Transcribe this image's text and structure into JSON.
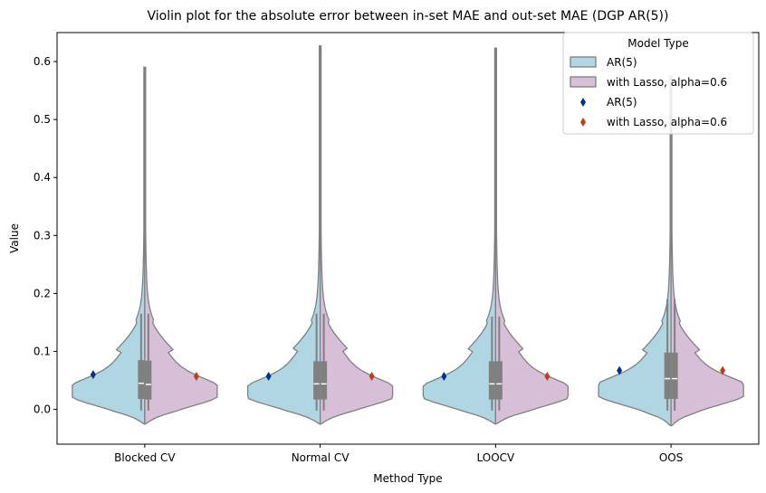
{
  "chart_data": {
    "type": "violin",
    "title": "Violin plot for the absolute error between in-set MAE and out-set MAE (DGP AR(5))",
    "xlabel": "Method Type",
    "ylabel": "Value",
    "ylim": [
      -0.06,
      0.65
    ],
    "yticks": [
      "0.0",
      "0.1",
      "0.2",
      "0.3",
      "0.4",
      "0.5",
      "0.6"
    ],
    "categories": [
      "Blocked CV",
      "Normal CV",
      "LOOCV",
      "OOS"
    ],
    "legend": {
      "title": "Model Type",
      "position": "top-right",
      "entries": [
        "AR(5)",
        "with Lasso, alpha=0.6",
        "AR(5)",
        "with Lasso, alpha=0.6"
      ]
    },
    "colors": {
      "ar5_fill": "#b0d6e3",
      "lasso_fill": "#d8bfd8",
      "violin_edge": "#808080",
      "ar5_marker": "#00308f",
      "lasso_marker": "#b5401b"
    },
    "series": [
      {
        "name": "AR(5)",
        "means": [
          0.06,
          0.057,
          0.057,
          0.067
        ],
        "medians": [
          0.045,
          0.044,
          0.044,
          0.053
        ],
        "q1": [
          0.018,
          0.017,
          0.017,
          0.018
        ],
        "q3": [
          0.085,
          0.083,
          0.083,
          0.098
        ],
        "whisker_low": [
          -0.002,
          -0.002,
          -0.002,
          -0.002
        ],
        "whisker_high": [
          0.165,
          0.165,
          0.16,
          0.19
        ],
        "max": [
          0.59,
          0.627,
          0.623,
          0.575
        ],
        "min": [
          -0.025,
          -0.025,
          -0.025,
          -0.028
        ],
        "mode": [
          0.028,
          0.027,
          0.027,
          0.03
        ]
      },
      {
        "name": "with Lasso, alpha=0.6",
        "means": [
          0.057,
          0.057,
          0.057,
          0.067
        ],
        "medians": [
          0.043,
          0.044,
          0.044,
          0.053
        ],
        "q1": [
          0.017,
          0.017,
          0.017,
          0.018
        ],
        "q3": [
          0.084,
          0.083,
          0.083,
          0.098
        ],
        "whisker_low": [
          -0.002,
          -0.002,
          -0.002,
          -0.002
        ],
        "whisker_high": [
          0.165,
          0.165,
          0.16,
          0.19
        ],
        "max": [
          0.59,
          0.627,
          0.623,
          0.575
        ],
        "min": [
          -0.025,
          -0.025,
          -0.025,
          -0.028
        ],
        "mode": [
          0.028,
          0.027,
          0.027,
          0.03
        ]
      }
    ]
  }
}
